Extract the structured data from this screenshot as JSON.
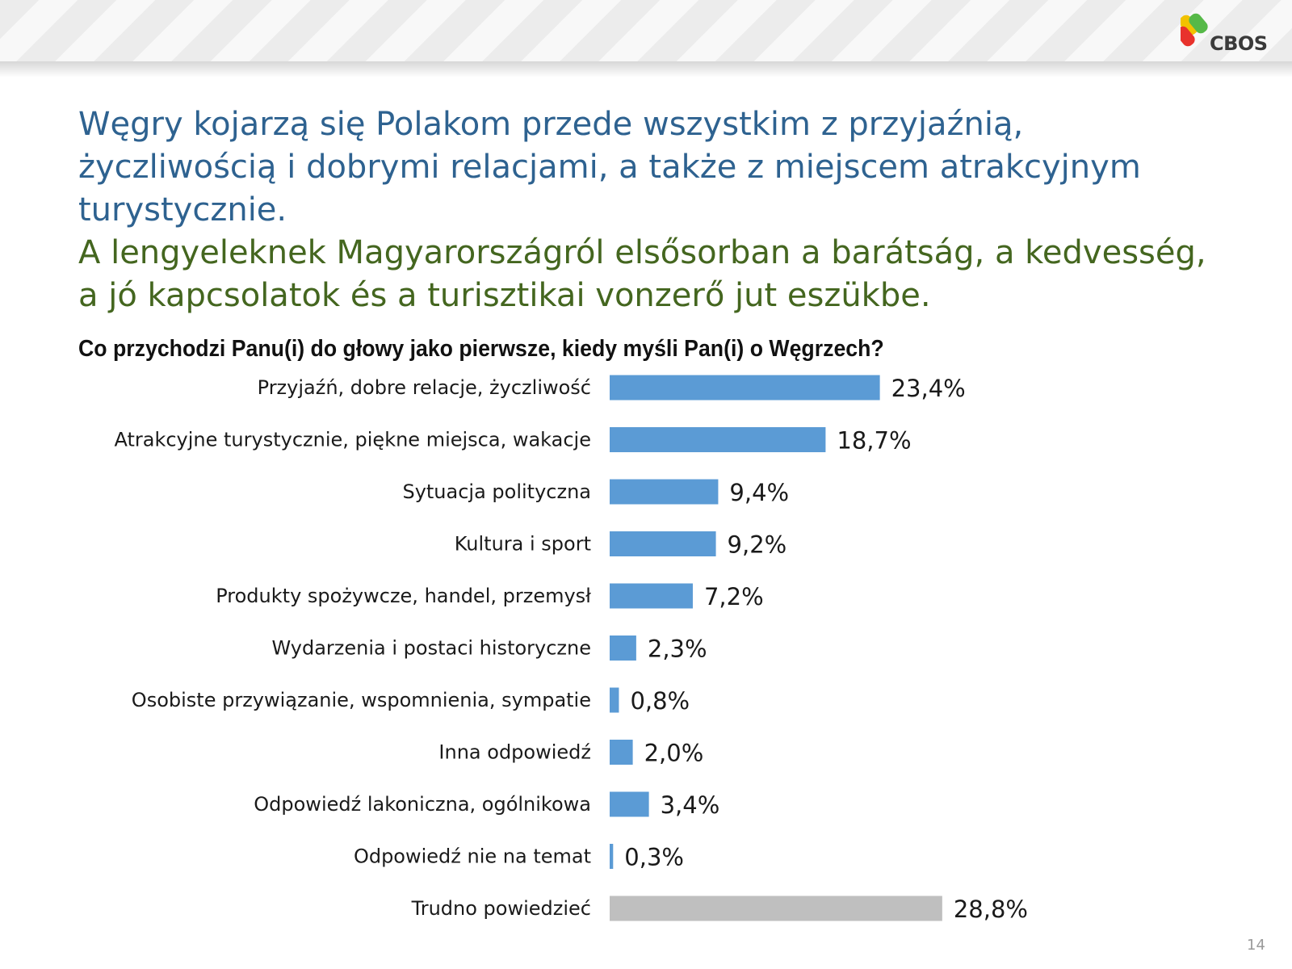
{
  "logo": {
    "text": "CBOS"
  },
  "headline": {
    "polish": "Węgry kojarzą się Polakom przede wszystkim z przyjaźnią, życzliwością i dobrymi relacjami, a także z miejscem atrakcyjnym turystycznie.",
    "hungarian": "A lengyeleknek Magyarországról elsősorban a barátság, a kedvesség, a jó kapcsolatok és a turisztikai vonzerő jut eszükbe."
  },
  "page_number": "14",
  "colors": {
    "bar": "#5b9bd5",
    "bar_other": "#bfbfbf",
    "polish_text": "#2e6290",
    "hungarian_text": "#44661f"
  },
  "chart_data": {
    "type": "bar",
    "orientation": "horizontal",
    "title": "Co przychodzi Panu(i) do głowy jako pierwsze, kiedy myśli Pan(i) o Węgrzech?",
    "categories": [
      "Przyjaźń, dobre relacje, życzliwość",
      "Atrakcyjne turystycznie, piękne miejsca, wakacje",
      "Sytuacja polityczna",
      "Kultura i sport",
      "Produkty spożywcze, handel, przemysł",
      "Wydarzenia i postaci historyczne",
      "Osobiste przywiązanie, wspomnienia, sympatie",
      "Inna odpowiedź",
      "Odpowiedź lakoniczna, ogólnikowa",
      "Odpowiedź nie na temat",
      "Trudno powiedzieć"
    ],
    "values": [
      23.4,
      18.7,
      9.4,
      9.2,
      7.2,
      2.3,
      0.8,
      2.0,
      3.4,
      0.3,
      28.8
    ],
    "value_labels": [
      "23,4%",
      "18,7%",
      "9,4%",
      "9,2%",
      "7,2%",
      "2,3%",
      "0,8%",
      "2,0%",
      "3,4%",
      "0,3%",
      "28,8%"
    ],
    "bar_colors": [
      "#5b9bd5",
      "#5b9bd5",
      "#5b9bd5",
      "#5b9bd5",
      "#5b9bd5",
      "#5b9bd5",
      "#5b9bd5",
      "#5b9bd5",
      "#5b9bd5",
      "#5b9bd5",
      "#bfbfbf"
    ],
    "xlim": [
      0,
      30
    ],
    "unit": "%",
    "grid": false,
    "legend": "none"
  }
}
